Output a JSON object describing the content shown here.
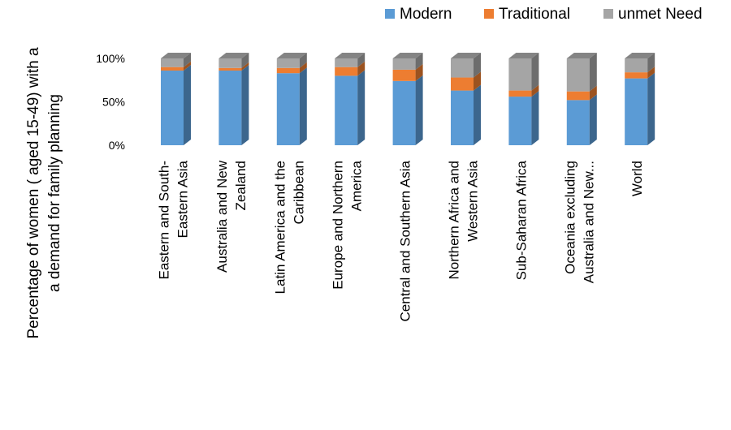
{
  "chart_data": {
    "type": "bar",
    "stacked": true,
    "three_d": true,
    "title": "",
    "xlabel": "",
    "ylabel": "Percentage of women ( aged 15-49) with a a demand for family planning",
    "ylabel_lines": [
      "Percentage of women ( aged 15-49) with a",
      "a demand for family planning"
    ],
    "ylim": [
      0,
      1
    ],
    "yticks": [
      {
        "value": 0,
        "label": "0%"
      },
      {
        "value": 0.5,
        "label": "50%"
      },
      {
        "value": 1,
        "label": "100%"
      }
    ],
    "grid": false,
    "legend_position": "top-right",
    "categories": [
      {
        "name": "Eastern and South-Eastern Asia",
        "lines": [
          "Eastern and South-",
          "Eastern Asia"
        ]
      },
      {
        "name": "Australia and New Zealand",
        "lines": [
          "Australia and New",
          "Zealand"
        ]
      },
      {
        "name": "Latin America and the Caribbean",
        "lines": [
          "Latin America and the",
          "Caribbean"
        ]
      },
      {
        "name": "Europe and Northern America",
        "lines": [
          "Europe and Northern",
          "America"
        ]
      },
      {
        "name": "Central and Southern Asia",
        "lines": [
          "Central and Southern Asia"
        ]
      },
      {
        "name": "Northern Africa and Western Asia",
        "lines": [
          "Northern Africa and",
          "Western Asia"
        ]
      },
      {
        "name": "Sub-Saharan Africa",
        "lines": [
          "Sub-Saharan Africa"
        ]
      },
      {
        "name": "Oceania excluding Australia and New...",
        "lines": [
          "Oceania excluding",
          "Australia and New..."
        ]
      },
      {
        "name": "World",
        "lines": [
          "World"
        ]
      }
    ],
    "series": [
      {
        "name": "Modern",
        "color": "#5B9BD5",
        "values": [
          0.86,
          0.86,
          0.83,
          0.8,
          0.74,
          0.63,
          0.56,
          0.52,
          0.77
        ]
      },
      {
        "name": "Traditional",
        "color": "#ED7D31",
        "values": [
          0.04,
          0.03,
          0.06,
          0.1,
          0.13,
          0.15,
          0.07,
          0.1,
          0.07
        ]
      },
      {
        "name": "unmet Need",
        "color": "#A5A5A5",
        "values": [
          0.1,
          0.11,
          0.11,
          0.1,
          0.13,
          0.22,
          0.37,
          0.38,
          0.16
        ]
      }
    ]
  }
}
